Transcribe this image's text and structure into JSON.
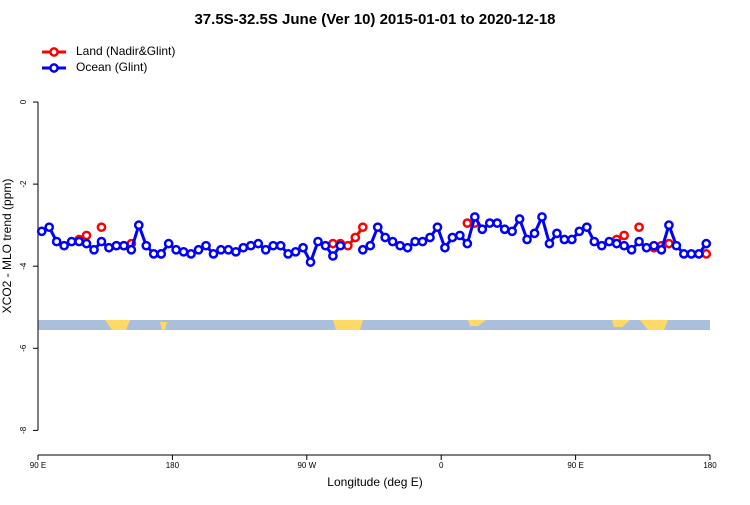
{
  "chart_data": {
    "type": "line",
    "title": "37.5S-32.5S June (Ver 10)   2015-01-01 to 2020-12-18",
    "x_label": "Longitude (deg E)",
    "y_label": "XCO2 - MLO trend (ppm)",
    "x": [
      92.5,
      97.5,
      102.5,
      107.5,
      112.5,
      117.5,
      122.5,
      127.5,
      132.5,
      137.5,
      142.5,
      147.5,
      152.5,
      157.5,
      162.5,
      167.5,
      172.5,
      177.5,
      182.5,
      187.5,
      192.5,
      197.5,
      202.5,
      207.5,
      212.5,
      217.5,
      222.5,
      227.5,
      232.5,
      237.5,
      242.5,
      247.5,
      252.5,
      257.5,
      262.5,
      267.5,
      272.5,
      277.5,
      282.5,
      287.5,
      292.5,
      297.5,
      302.5,
      307.5,
      312.5,
      317.5,
      322.5,
      327.5,
      332.5,
      337.5,
      342.5,
      347.5,
      352.5,
      357.5,
      362.5,
      367.5,
      372.5,
      377.5,
      382.5,
      387.5,
      392.5,
      397.5,
      402.5,
      407.5,
      412.5,
      417.5,
      422.5,
      427.5,
      432.5,
      437.5,
      442.5,
      447.5,
      452.5,
      457.5,
      462.5,
      467.5,
      472.5,
      477.5,
      482.5,
      487.5,
      492.5,
      497.5,
      502.5,
      507.5,
      512.5,
      517.5,
      522.5,
      527.5,
      532.5,
      537.5
    ],
    "series": [
      {
        "name": "Land (Nadir&Glint)",
        "color": "#ff0000",
        "values": [
          null,
          null,
          null,
          null,
          null,
          -3.35,
          -3.25,
          null,
          -3.05,
          null,
          -3.5,
          -3.5,
          -3.45,
          null,
          null,
          null,
          -3.7,
          null,
          null,
          null,
          null,
          null,
          null,
          null,
          null,
          null,
          null,
          null,
          null,
          null,
          null,
          null,
          null,
          null,
          null,
          null,
          null,
          null,
          null,
          -3.45,
          -3.45,
          -3.5,
          -3.3,
          -3.05,
          null,
          null,
          null,
          null,
          null,
          null,
          null,
          null,
          null,
          null,
          null,
          null,
          null,
          -2.95,
          -2.95,
          null,
          null,
          null,
          null,
          null,
          null,
          null,
          null,
          null,
          null,
          null,
          null,
          null,
          null,
          null,
          null,
          null,
          null,
          -3.35,
          -3.25,
          null,
          -3.05,
          null,
          -3.55,
          -3.5,
          -3.45,
          null,
          null,
          null,
          null,
          -3.7
        ]
      },
      {
        "name": "Ocean (Glint)",
        "color": "#0000ff",
        "values": [
          -3.15,
          -3.05,
          -3.4,
          -3.5,
          -3.4,
          -3.4,
          -3.45,
          -3.6,
          -3.4,
          -3.55,
          -3.5,
          -3.5,
          -3.6,
          -3.0,
          -3.5,
          -3.7,
          -3.7,
          -3.45,
          -3.6,
          -3.65,
          -3.7,
          -3.6,
          -3.5,
          -3.7,
          -3.6,
          -3.6,
          -3.65,
          -3.55,
          -3.5,
          -3.45,
          -3.6,
          -3.5,
          -3.5,
          -3.7,
          -3.65,
          -3.55,
          -3.9,
          -3.4,
          -3.5,
          -3.75,
          -3.5,
          null,
          null,
          -3.6,
          -3.5,
          -3.05,
          -3.3,
          -3.4,
          -3.5,
          -3.55,
          -3.4,
          -3.4,
          -3.3,
          -3.05,
          -3.55,
          -3.3,
          -3.25,
          -3.45,
          -2.8,
          -3.1,
          -2.95,
          -2.95,
          -3.1,
          -3.15,
          -2.85,
          -3.35,
          -3.2,
          -2.8,
          -3.45,
          -3.2,
          -3.35,
          -3.35,
          -3.15,
          -3.05,
          -3.4,
          -3.5,
          -3.4,
          -3.45,
          -3.5,
          -3.6,
          -3.4,
          -3.55,
          -3.5,
          -3.6,
          -3.0,
          -3.5,
          -3.7,
          -3.7,
          -3.7,
          -3.45
        ]
      }
    ],
    "xlim": [
      90,
      540
    ],
    "xticks": [
      {
        "value": 90,
        "label": "90 E"
      },
      180,
      {
        "value": 270,
        "label": "90 W"
      },
      {
        "value": 360,
        "label": "0"
      },
      {
        "value": 450,
        "label": "90 E"
      },
      {
        "value": 540,
        "label": "180"
      }
    ],
    "ylim": [
      -8.6,
      1.56
    ],
    "yticks": [
      0,
      -2,
      -4,
      -6,
      -8
    ],
    "legend": "top-left"
  }
}
